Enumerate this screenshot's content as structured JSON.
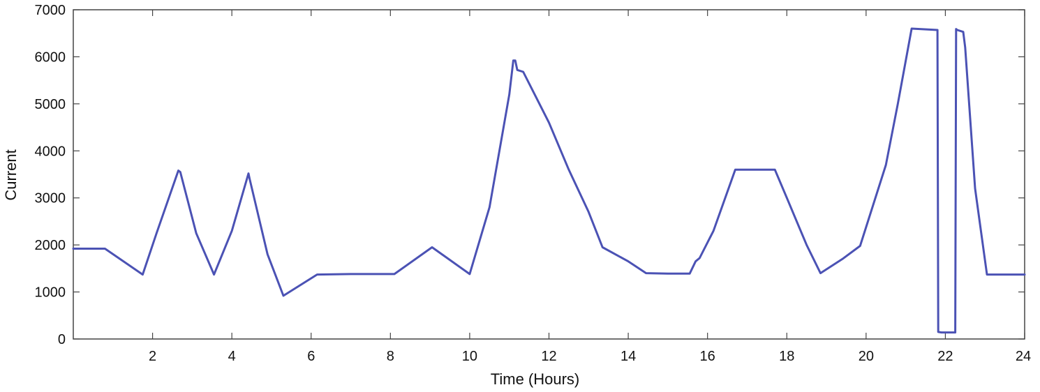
{
  "chart_data": {
    "type": "line",
    "title": "",
    "xlabel": "Time (Hours)",
    "ylabel": "Current",
    "xlim": [
      0,
      24
    ],
    "ylim": [
      0,
      7000
    ],
    "xticks": [
      2,
      4,
      6,
      8,
      10,
      12,
      14,
      16,
      18,
      20,
      22,
      24
    ],
    "xtick_labels": [
      "2",
      "4",
      "6",
      "8",
      "10",
      "12",
      "14",
      "16",
      "18",
      "20",
      "22",
      "24"
    ],
    "yticks": [
      0,
      1000,
      2000,
      3000,
      4000,
      5000,
      6000,
      7000
    ],
    "ytick_labels": [
      "0",
      "1000",
      "2000",
      "3000",
      "4000",
      "5000",
      "6000",
      "7000"
    ],
    "grid": false,
    "line_color": "#4b52b4",
    "series": [
      {
        "x": [
          0,
          0.8,
          1.75,
          2.1,
          2.65,
          2.7,
          3.1,
          3.55,
          4.0,
          4.42,
          4.45,
          4.9,
          5.3,
          6.15,
          7.0,
          8.1,
          9.05,
          10.0,
          10.5,
          11.0,
          11.1,
          11.15,
          11.2,
          11.35,
          12.0,
          12.5,
          13.0,
          13.35,
          14.0,
          14.45,
          15.0,
          15.55,
          15.7,
          15.8,
          16.15,
          16.7,
          17.7,
          18.0,
          18.5,
          18.85,
          19.4,
          19.85,
          20.5,
          20.8,
          21.15,
          21.8,
          21.82,
          21.9,
          22.25,
          22.27,
          22.3,
          22.45,
          22.5,
          22.75,
          23.05,
          24.0
        ],
        "y": [
          1920,
          1920,
          1370,
          2250,
          3580,
          3550,
          2250,
          1370,
          2300,
          3520,
          3400,
          1800,
          920,
          1370,
          1380,
          1380,
          1950,
          1380,
          2800,
          5200,
          5920,
          5920,
          5720,
          5680,
          4600,
          3600,
          2700,
          1950,
          1650,
          1400,
          1390,
          1390,
          1650,
          1720,
          2300,
          3600,
          3600,
          3000,
          2000,
          1400,
          1700,
          1980,
          3700,
          5000,
          6600,
          6570,
          150,
          140,
          140,
          6590,
          6570,
          6530,
          6200,
          3200,
          1370,
          1370
        ]
      }
    ]
  }
}
